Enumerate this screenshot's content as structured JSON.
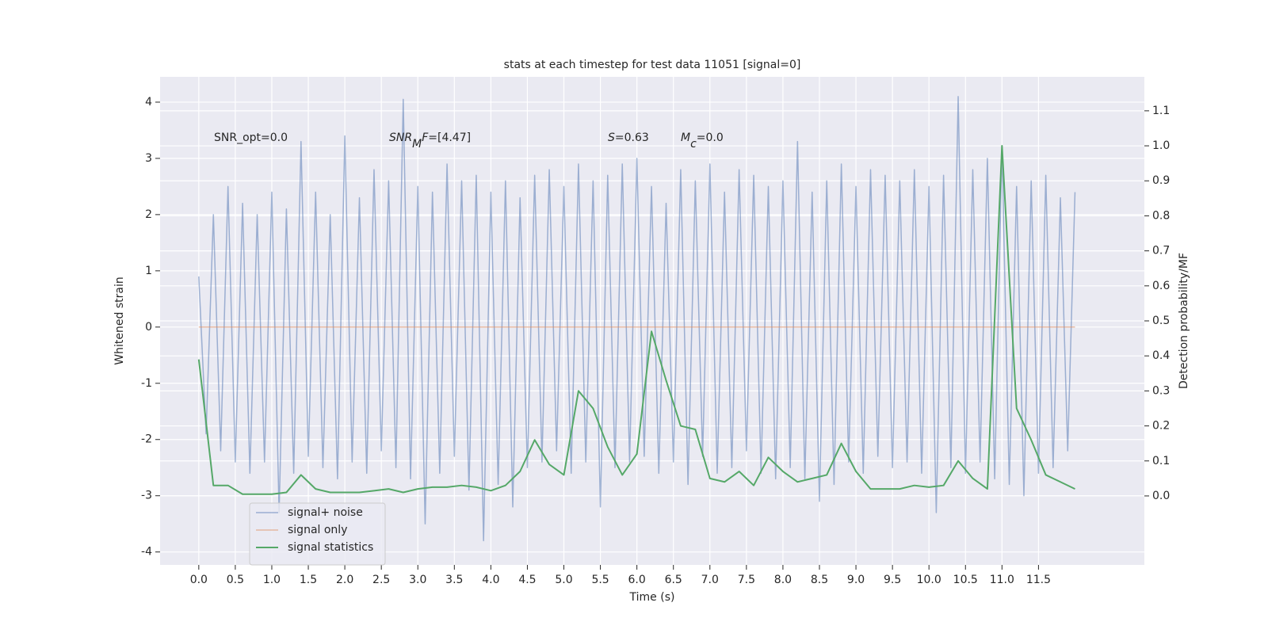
{
  "chart_data": {
    "type": "line",
    "title": "stats at each timestep for test data 11051 [signal=0]",
    "xlabel": "Time (s)",
    "ylabel": "Whitened strain",
    "y2label": "Detection probability/MF",
    "xlim": [
      -0.53,
      12.95
    ],
    "ylim": [
      -4.23,
      4.45
    ],
    "y2lim": [
      -0.197,
      1.197
    ],
    "xticks": [
      {
        "value": 0,
        "label": "0.0"
      },
      0.5,
      {
        "value": 1,
        "label": "1.0"
      },
      1.5,
      {
        "value": 2,
        "label": "2.0"
      },
      2.5,
      {
        "value": 3,
        "label": "3.0"
      },
      3.5,
      {
        "value": 4,
        "label": "4.0"
      },
      4.5,
      {
        "value": 5,
        "label": "5.0"
      },
      5.5,
      {
        "value": 6,
        "label": "6.0"
      },
      6.5,
      {
        "value": 7,
        "label": "7.0"
      },
      7.5,
      {
        "value": 8,
        "label": "8.0"
      },
      8.5,
      {
        "value": 9,
        "label": "9.0"
      },
      9.5,
      {
        "value": 10,
        "label": "10.0"
      },
      10.5,
      {
        "value": 11,
        "label": "11.0"
      },
      11.5
    ],
    "yticks": [
      -4,
      -3,
      -2,
      -1,
      0,
      1,
      2,
      3,
      4
    ],
    "y2ticks": [
      {
        "value": 0,
        "label": "0.0"
      },
      0.1,
      0.2,
      0.3,
      0.4,
      0.5,
      0.6,
      0.7,
      0.8,
      0.9,
      {
        "value": 1,
        "label": "1.0"
      },
      1.1
    ],
    "grid": true,
    "legend": "lower left",
    "annotations": [
      {
        "segments": [
          {
            "text": "SNR_opt=0.0",
            "style": "normal"
          }
        ]
      },
      {
        "segments": [
          {
            "text": "SNR",
            "style": "italic"
          },
          {
            "text": "M",
            "style": "italic-sub"
          },
          {
            "text": "F",
            "style": "italic"
          },
          {
            "text": "=[4.47]",
            "style": "normal"
          }
        ]
      },
      {
        "segments": [
          {
            "text": "S",
            "style": "italic"
          },
          {
            "text": "=0.63",
            "style": "normal"
          }
        ]
      },
      {
        "segments": [
          {
            "text": "M",
            "style": "italic"
          },
          {
            "text": "c",
            "style": "italic-sub"
          },
          {
            "text": "=0.0",
            "style": "normal"
          }
        ]
      }
    ],
    "series": [
      {
        "name": "signal+ noise",
        "color": "#4c72b0",
        "alpha": 0.5,
        "x": [
          0.0,
          0.1,
          0.2,
          0.3,
          0.4,
          0.5,
          0.6,
          0.7,
          0.8,
          0.9,
          1.0,
          1.1,
          1.2,
          1.3,
          1.4,
          1.5,
          1.6,
          1.7,
          1.8,
          1.9,
          2.0,
          2.1,
          2.2,
          2.3,
          2.4,
          2.5,
          2.6,
          2.7,
          2.8,
          2.9,
          3.0,
          3.1,
          3.2,
          3.3,
          3.4,
          3.5,
          3.6,
          3.7,
          3.8,
          3.9,
          4.0,
          4.1,
          4.2,
          4.3,
          4.4,
          4.5,
          4.6,
          4.7,
          4.8,
          4.9,
          5.0,
          5.1,
          5.2,
          5.3,
          5.4,
          5.5,
          5.6,
          5.7,
          5.8,
          5.9,
          6.0,
          6.1,
          6.2,
          6.3,
          6.4,
          6.5,
          6.6,
          6.7,
          6.8,
          6.9,
          7.0,
          7.1,
          7.2,
          7.3,
          7.4,
          7.5,
          7.6,
          7.7,
          7.8,
          7.9,
          8.0,
          8.1,
          8.2,
          8.3,
          8.4,
          8.5,
          8.6,
          8.7,
          8.8,
          8.9,
          9.0,
          9.1,
          9.2,
          9.3,
          9.4,
          9.5,
          9.6,
          9.7,
          9.8,
          9.9,
          10.0,
          10.1,
          10.2,
          10.3,
          10.4,
          10.5,
          10.6,
          10.7,
          10.8,
          10.9,
          11.0,
          11.1,
          11.2,
          11.3,
          11.4,
          11.5,
          11.6,
          11.7,
          11.8,
          11.9,
          12.0
        ],
        "values": [
          0.9,
          -1.9,
          2.0,
          -2.2,
          2.5,
          -2.4,
          2.2,
          -2.6,
          2.0,
          -2.4,
          2.4,
          -3.3,
          2.1,
          -2.6,
          3.3,
          -2.3,
          2.4,
          -2.5,
          2.0,
          -2.7,
          3.4,
          -2.4,
          2.3,
          -2.6,
          2.8,
          -2.2,
          2.6,
          -2.5,
          4.05,
          -2.7,
          2.5,
          -3.5,
          2.4,
          -2.6,
          2.9,
          -2.3,
          2.6,
          -2.9,
          2.7,
          -3.8,
          2.4,
          -2.8,
          2.6,
          -3.2,
          2.3,
          -2.5,
          2.7,
          -2.4,
          2.8,
          -2.2,
          2.5,
          -2.6,
          2.9,
          -2.4,
          2.6,
          -3.2,
          2.7,
          -2.5,
          2.9,
          -2.4,
          3.0,
          -2.3,
          2.5,
          -2.6,
          2.2,
          -2.4,
          2.8,
          -2.8,
          2.6,
          -2.3,
          2.9,
          -2.6,
          2.4,
          -2.5,
          2.8,
          -2.2,
          2.7,
          -2.6,
          2.5,
          -2.7,
          2.6,
          -2.5,
          3.3,
          -2.7,
          2.4,
          -3.1,
          2.6,
          -2.8,
          2.9,
          -2.4,
          2.5,
          -2.6,
          2.8,
          -2.3,
          2.7,
          -2.5,
          2.6,
          -2.4,
          2.8,
          -2.6,
          2.5,
          -3.3,
          2.7,
          -2.5,
          4.1,
          -2.6,
          2.8,
          -2.4,
          3.0,
          -2.7,
          3.2,
          -2.8,
          2.5,
          -3.0,
          2.6,
          -2.6,
          2.7,
          -2.5,
          2.3,
          -2.2,
          2.4
        ]
      },
      {
        "name": "signal only",
        "color": "#dd8452",
        "alpha": 0.5,
        "x": [
          0.0,
          12.0
        ],
        "values": [
          0,
          0
        ]
      },
      {
        "name": "signal statistics",
        "color": "#55a868",
        "alpha": 1,
        "axis": "y2",
        "x": [
          0.0,
          0.2,
          0.4,
          0.6,
          0.8,
          1.0,
          1.2,
          1.4,
          1.6,
          1.8,
          2.0,
          2.2,
          2.4,
          2.6,
          2.8,
          3.0,
          3.2,
          3.4,
          3.6,
          3.8,
          4.0,
          4.2,
          4.4,
          4.6,
          4.8,
          5.0,
          5.2,
          5.4,
          5.6,
          5.8,
          6.0,
          6.2,
          6.4,
          6.6,
          6.8,
          7.0,
          7.2,
          7.4,
          7.6,
          7.8,
          8.0,
          8.2,
          8.4,
          8.6,
          8.8,
          9.0,
          9.2,
          9.4,
          9.6,
          9.8,
          10.0,
          10.2,
          10.4,
          10.6,
          10.8,
          11.0,
          11.2,
          11.4,
          11.6,
          11.8,
          12.0
        ],
        "values": [
          0.39,
          0.03,
          0.03,
          0.005,
          0.005,
          0.005,
          0.01,
          0.06,
          0.02,
          0.01,
          0.01,
          0.01,
          0.015,
          0.02,
          0.01,
          0.02,
          0.025,
          0.025,
          0.03,
          0.025,
          0.015,
          0.03,
          0.07,
          0.16,
          0.09,
          0.06,
          0.3,
          0.25,
          0.14,
          0.06,
          0.12,
          0.47,
          0.33,
          0.2,
          0.19,
          0.05,
          0.04,
          0.07,
          0.03,
          0.11,
          0.07,
          0.04,
          0.05,
          0.06,
          0.15,
          0.07,
          0.02,
          0.02,
          0.02,
          0.03,
          0.025,
          0.03,
          0.1,
          0.05,
          0.02,
          1.0,
          0.25,
          0.16,
          0.06,
          0.04,
          0.02
        ]
      }
    ]
  }
}
